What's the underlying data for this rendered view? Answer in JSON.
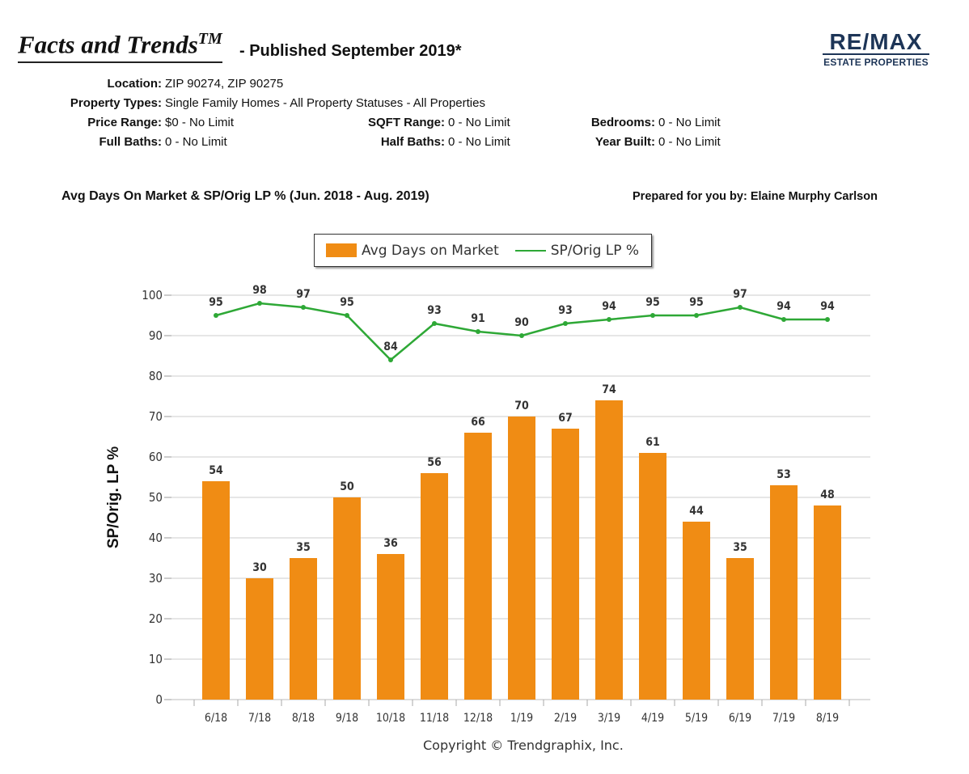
{
  "header": {
    "title": "Facts and Trends",
    "title_mark": "TM",
    "published": "- Published September 2019*",
    "logo_main": "RE/MAX",
    "logo_sub": "ESTATE PROPERTIES"
  },
  "criteria": {
    "location_label": "Location:",
    "location_value": "ZIP 90274, ZIP 90275",
    "property_types_label": "Property Types:",
    "property_types_value": "Single Family Homes - All Property Statuses - All Properties",
    "price_label": "Price Range:",
    "price_value": "$0 - No Limit",
    "sqft_label": "SQFT Range:",
    "sqft_value": "0 - No Limit",
    "bedrooms_label": "Bedrooms:",
    "bedrooms_value": "0 - No Limit",
    "full_baths_label": "Full Baths:",
    "full_baths_value": "0 - No Limit",
    "half_baths_label": "Half Baths:",
    "half_baths_value": "0 - No Limit",
    "year_built_label": "Year Built:",
    "year_built_value": "0 - No Limit"
  },
  "prepared_by": "Prepared for you by: Elaine Murphy Carlson",
  "copyright": "Copyright © Trendgraphix, Inc.",
  "colors": {
    "bar": "#f08c14",
    "line": "#2ea836",
    "grid": "#cccccc"
  },
  "chart_data": {
    "type": "bar",
    "title": "Avg Days On Market & SP/Orig LP % (Jun. 2018 - Aug. 2019)",
    "ylabel": "SP/Orig. LP %",
    "xlabel": "",
    "ylim": [
      0,
      100
    ],
    "yticks": [
      0,
      10,
      20,
      30,
      40,
      50,
      60,
      70,
      80,
      90,
      100
    ],
    "grid": true,
    "legend_position": "top-center",
    "categories": [
      "6/18",
      "7/18",
      "8/18",
      "9/18",
      "10/18",
      "11/18",
      "12/18",
      "1/19",
      "2/19",
      "3/19",
      "4/19",
      "5/19",
      "6/19",
      "7/19",
      "8/19"
    ],
    "series": [
      {
        "name": "Avg Days on Market",
        "type": "bar",
        "values": [
          54,
          30,
          35,
          50,
          36,
          56,
          66,
          70,
          67,
          74,
          61,
          44,
          35,
          53,
          48
        ]
      },
      {
        "name": "SP/Orig LP %",
        "type": "line",
        "values": [
          95,
          98,
          97,
          95,
          84,
          93,
          91,
          90,
          93,
          94,
          95,
          95,
          97,
          94,
          94
        ]
      }
    ]
  }
}
